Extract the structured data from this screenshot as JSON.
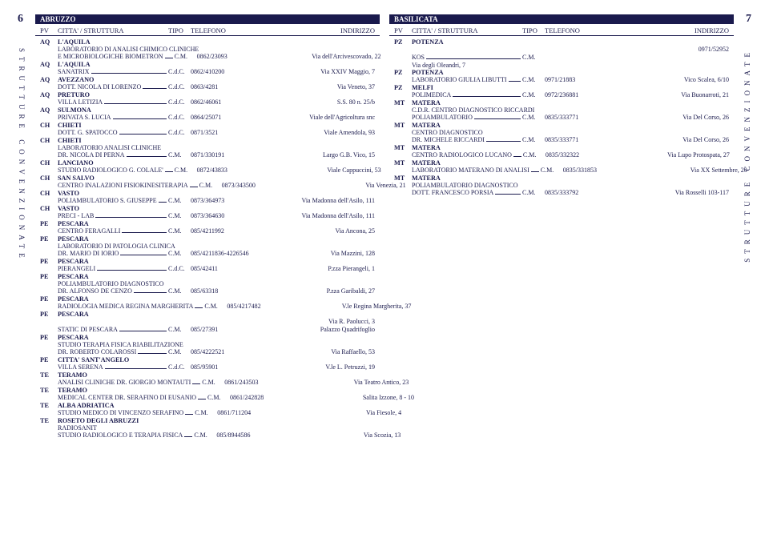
{
  "page_left": "6",
  "page_right": "7",
  "side_label": "STRUTTURE CONVENZIONATE",
  "header": {
    "pv": "PV",
    "city": "CITTA' / STRUTTURA",
    "tipo": "TIPO",
    "tel": "TELEFONO",
    "addr": "INDIRIZZO"
  },
  "left_region": "ABRUZZO",
  "right_region": "BASILICATA",
  "left": [
    {
      "pv": "AQ",
      "city": "L'AQUILA"
    },
    {
      "name_extra": "LABORATORIO DI ANALISI CHIMICO CLINICHE"
    },
    {
      "name": "E MICROBIOLOGICHE BIOMETRON",
      "tipo": "C.M.",
      "tel": "0862/23093",
      "addr": "Via dell'Arcivescovado, 22"
    },
    {
      "pv": "AQ",
      "city": "L'AQUILA"
    },
    {
      "name": "SANATRIX",
      "tipo": "C.d.C.",
      "tel": "0862/410200",
      "addr": "Via XXIV Maggio, 7"
    },
    {
      "pv": "AQ",
      "city": "AVEZZANO"
    },
    {
      "name": "DOTT. NICOLA DI LORENZO",
      "tipo": "C.d.C.",
      "tel": "0863/4281",
      "addr": "Via Veneto, 37"
    },
    {
      "pv": "AQ",
      "city": "PRETURO"
    },
    {
      "name": "VILLA LETIZIA",
      "tipo": "C.d.C.",
      "tel": "0862/46061",
      "addr": "S.S. 80 n. 25/b"
    },
    {
      "pv": "AQ",
      "city": "SULMONA"
    },
    {
      "name": "PRIVATA S. LUCIA",
      "tipo": "C.d.C.",
      "tel": "0864/25071",
      "addr": "Viale dell'Agricoltura snc"
    },
    {
      "pv": "CH",
      "city": "CHIETI"
    },
    {
      "name": "DOTT. G. SPATOCCO",
      "tipo": "C.d.C.",
      "tel": "0871/3521",
      "addr": "Viale Amendola, 93"
    },
    {
      "pv": "CH",
      "city": "CHIETI"
    },
    {
      "name_extra": "LABORATORIO ANALISI CLINICHE"
    },
    {
      "name": "DR. NICOLA DI PERNA",
      "tipo": "C.M.",
      "tel": "0871/330191",
      "addr": "Largo G.B. Vico, 15"
    },
    {
      "pv": "CH",
      "city": "LANCIANO"
    },
    {
      "name": "STUDIO RADIOLOGICO G. COLALE'",
      "tipo": "C.M.",
      "tel": "0872/43833",
      "addr": "Viale Cappuccini, 53"
    },
    {
      "pv": "CH",
      "city": "SAN SALVO"
    },
    {
      "name": "CENTRO INALAZIONI FISIOKINESITERAPIA",
      "tipo": "C.M.",
      "tel": "0873/343500",
      "addr": "Via Venezia, 21"
    },
    {
      "pv": "CH",
      "city": "VASTO"
    },
    {
      "name": "POLIAMBULATORIO S. GIUSEPPE",
      "tipo": "C.M.",
      "tel": "0873/364973",
      "addr": "Via Madonna dell'Asilo, 111"
    },
    {
      "pv": "CH",
      "city": "VASTO"
    },
    {
      "name": "PRECI - LAB",
      "tipo": "C.M.",
      "tel": "0873/364630",
      "addr": "Via Madonna dell'Asilo, 111"
    },
    {
      "pv": "PE",
      "city": "PESCARA"
    },
    {
      "name": "CENTRO FERAGALLI",
      "tipo": "C.M.",
      "tel": "085/4211992",
      "addr": "Via Ancona, 25"
    },
    {
      "pv": "PE",
      "city": "PESCARA"
    },
    {
      "name_extra": "LABORATORIO DI PATOLOGIA CLINICA"
    },
    {
      "name": "DR. MARIO DI IORIO",
      "tipo": "C.M.",
      "tel": "085/4211836-4226546",
      "addr": "Via Mazzini, 128"
    },
    {
      "pv": "PE",
      "city": "PESCARA"
    },
    {
      "name": "PIERANGELI",
      "tipo": "C.d.C.",
      "tel": "085/42411",
      "addr": "P.zza Pierangeli, 1"
    },
    {
      "pv": "PE",
      "city": "PESCARA"
    },
    {
      "name_extra": "POLIAMBULATORIO DIAGNOSTICO"
    },
    {
      "name": "DR. ALFONSO DE CENZO",
      "tipo": "C.M.",
      "tel": "085/63318",
      "addr": "P.zza Garibaldi, 27"
    },
    {
      "pv": "PE",
      "city": "PESCARA"
    },
    {
      "name": "RADIOLOGIA MEDICA REGINA MARGHERITA",
      "tipo": "C.M.",
      "tel": "085/4217482",
      "addr": "V.le Regina Margherita, 37"
    },
    {
      "pv": "PE",
      "city": "PESCARA"
    },
    {
      "addr_extra": "Via R. Paolucci, 3"
    },
    {
      "name": "STATIC DI PESCARA",
      "tipo": "C.M.",
      "tel": "085/27391",
      "addr": "Palazzo Quadrifoglio"
    },
    {
      "pv": "PE",
      "city": "PESCARA"
    },
    {
      "name_extra": "STUDIO TERAPIA FISICA RIABILITAZIONE"
    },
    {
      "name": "DR. ROBERTO COLAROSSI",
      "tipo": "C.M.",
      "tel": "085/4222521",
      "addr": "Via Raffaello, 53"
    },
    {
      "pv": "PE",
      "city": "CITTA' SANT'ANGELO"
    },
    {
      "name": "VILLA SERENA",
      "tipo": "C.d.C.",
      "tel": "085/95901",
      "addr": "V.le L. Petruzzi, 19"
    },
    {
      "pv": "TE",
      "city": "TERAMO"
    },
    {
      "name": "ANALISI CLINICHE DR. GIORGIO MONTAUTI",
      "tipo": "C.M.",
      "tel": "0861/243503",
      "addr": "Via Teatro Antico, 23"
    },
    {
      "pv": "TE",
      "city": "TERAMO"
    },
    {
      "name": "MEDICAL CENTER DR. SERAFINO DI EUSANIO",
      "tipo": "C.M.",
      "tel": "0861/242828",
      "addr": "Salita Izzone, 8 - 10"
    },
    {
      "pv": "TE",
      "city": "ALBA ADRIATICA"
    },
    {
      "name": "STUDIO MEDICO DI VINCENZO SERAFINO",
      "tipo": "C.M.",
      "tel": "0861/711204",
      "addr": "Via Fiesole, 4"
    },
    {
      "pv": "TE",
      "city": "ROSETO DEGLI ABRUZZI"
    },
    {
      "name_extra": "RADIOSANIT"
    },
    {
      "name": "STUDIO RADIOLOGICO E TERAPIA FISICA",
      "tipo": "C.M.",
      "tel": "085/8944586",
      "addr": "Via Scozia, 13"
    }
  ],
  "right": [
    {
      "pv": "PZ",
      "city": "POTENZA"
    },
    {
      "addr_extra": "0971/52952"
    },
    {
      "name": "KOS",
      "tipo": "C.M.",
      "tel": "",
      "addr": "",
      "tel_in_addr": true
    },
    {
      "name_only": "Via degli Oleandri, 7"
    },
    {
      "pv": "PZ",
      "city": "POTENZA"
    },
    {
      "name": "LABORATORIO GIULIA LIBUTTI",
      "tipo": "C.M.",
      "tel": "0971/21883",
      "addr": "Vico Scalea, 6/10"
    },
    {
      "pv": "PZ",
      "city": "MELFI"
    },
    {
      "name": "POLIMEDICA",
      "tipo": "C.M.",
      "tel": "0972/236881",
      "addr": "Via Buonarroti, 21"
    },
    {
      "pv": "MT",
      "city": "MATERA"
    },
    {
      "name_extra": "C.D.R. CENTRO DIAGNOSTICO RICCARDI"
    },
    {
      "name": "POLIAMBULATORIO",
      "tipo": "C.M.",
      "tel": "0835/333771",
      "addr": "Via Del Corso, 26"
    },
    {
      "pv": "MT",
      "city": "MATERA"
    },
    {
      "name_extra": "CENTRO DIAGNOSTICO"
    },
    {
      "name": "DR. MICHELE RICCARDI",
      "tipo": "C.M.",
      "tel": "0835/333771",
      "addr": "Via Del Corso, 26"
    },
    {
      "pv": "MT",
      "city": "MATERA"
    },
    {
      "name": "CENTRO RADIOLOGICO LUCANO",
      "tipo": "C.M.",
      "tel": "0835/332322",
      "addr": "Via Lupo Protospata, 27"
    },
    {
      "pv": "MT",
      "city": "MATERA"
    },
    {
      "name": "LABORATORIO MATERANO DI ANALISI",
      "tipo": "C.M.",
      "tel": "0835/331853",
      "addr": "Via XX Settembre, 20"
    },
    {
      "pv": "MT",
      "city": "MATERA"
    },
    {
      "name_extra": "POLIAMBULATORIO DIAGNOSTICO"
    },
    {
      "name": "DOTT. FRANCESCO PORSIA",
      "tipo": "C.M.",
      "tel": "0835/333792",
      "addr": "Via Rosselli 103-117"
    }
  ]
}
